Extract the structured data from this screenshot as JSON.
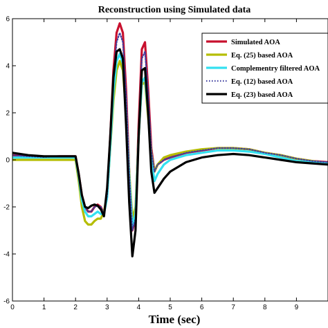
{
  "chart_data": {
    "type": "line",
    "title": "Reconstruction using Simulated data",
    "xlabel": "Time (sec)",
    "ylabel": "",
    "xlim": [
      0,
      10
    ],
    "ylim": [
      -6,
      6
    ],
    "xticks": [
      0,
      1,
      2,
      3,
      4,
      5,
      6,
      7,
      8,
      9
    ],
    "yticks": [
      -6,
      -4,
      -2,
      0,
      2,
      4,
      6
    ],
    "grid": false,
    "legend_position": "top-right",
    "series": [
      {
        "name": "Simulated AOA",
        "color": "#c8102e",
        "style": "solid",
        "x": [
          0,
          0.5,
          1,
          1.5,
          2.0,
          2.1,
          2.2,
          2.3,
          2.4,
          2.5,
          2.6,
          2.7,
          2.8,
          2.9,
          3.0,
          3.1,
          3.2,
          3.3,
          3.4,
          3.5,
          3.6,
          3.7,
          3.8,
          3.9,
          4.0,
          4.1,
          4.2,
          4.3,
          4.4,
          4.5,
          4.6,
          4.8,
          5.0,
          5.5,
          6.0,
          6.5,
          7.0,
          7.5,
          8.0,
          8.5,
          9.0,
          9.5,
          10.0
        ],
        "y": [
          0.2,
          0.15,
          0.12,
          0.15,
          0.15,
          -0.6,
          -1.5,
          -2.0,
          -2.2,
          -2.2,
          -2.0,
          -1.9,
          -2.0,
          -2.3,
          -1.5,
          1.0,
          3.8,
          5.4,
          5.8,
          5.4,
          3.0,
          -0.5,
          -3.0,
          -2.5,
          1.5,
          4.7,
          5.0,
          3.0,
          0.5,
          -0.5,
          -0.2,
          0.0,
          0.1,
          0.3,
          0.4,
          0.5,
          0.5,
          0.45,
          0.3,
          0.2,
          0.05,
          -0.05,
          -0.1
        ]
      },
      {
        "name": "Eq. (25) based AOA",
        "color": "#b5bd00",
        "style": "solid",
        "x": [
          0,
          0.5,
          1,
          1.5,
          2.0,
          2.1,
          2.2,
          2.3,
          2.4,
          2.5,
          2.6,
          2.7,
          2.8,
          2.9,
          3.0,
          3.1,
          3.2,
          3.3,
          3.4,
          3.5,
          3.6,
          3.7,
          3.8,
          3.9,
          4.0,
          4.1,
          4.2,
          4.3,
          4.4,
          4.5,
          4.6,
          4.8,
          5.0,
          5.5,
          6.0,
          6.5,
          7.0,
          7.5,
          8.0,
          8.5,
          9.0,
          9.5,
          10.0
        ],
        "y": [
          0.0,
          0.0,
          0.0,
          0.0,
          0.0,
          -0.9,
          -2.0,
          -2.6,
          -2.75,
          -2.75,
          -2.6,
          -2.5,
          -2.5,
          -2.2,
          -1.5,
          0.5,
          2.5,
          3.8,
          4.2,
          3.8,
          2.0,
          -0.5,
          -2.5,
          -2.0,
          1.0,
          3.2,
          3.3,
          1.8,
          0.3,
          -0.5,
          -0.2,
          0.1,
          0.2,
          0.35,
          0.45,
          0.5,
          0.5,
          0.45,
          0.3,
          0.2,
          0.05,
          -0.05,
          -0.15
        ]
      },
      {
        "name": "Complementry filtered AOA",
        "color": "#33e0f0",
        "style": "solid",
        "x": [
          0,
          0.5,
          1,
          1.5,
          2.0,
          2.1,
          2.2,
          2.3,
          2.4,
          2.5,
          2.6,
          2.7,
          2.8,
          2.9,
          3.0,
          3.1,
          3.2,
          3.3,
          3.4,
          3.5,
          3.6,
          3.7,
          3.8,
          3.9,
          4.0,
          4.1,
          4.2,
          4.3,
          4.4,
          4.5,
          4.6,
          4.8,
          5.0,
          5.5,
          6.0,
          6.5,
          7.0,
          7.5,
          8.0,
          8.5,
          9.0,
          9.5,
          10.0
        ],
        "y": [
          0.1,
          0.1,
          0.1,
          0.1,
          0.1,
          -0.7,
          -1.7,
          -2.2,
          -2.4,
          -2.4,
          -2.3,
          -2.2,
          -2.3,
          -2.3,
          -1.6,
          0.6,
          2.9,
          4.2,
          4.5,
          4.1,
          2.2,
          -0.7,
          -2.8,
          -2.3,
          1.0,
          3.3,
          3.5,
          2.0,
          0.1,
          -0.9,
          -0.6,
          -0.2,
          0.0,
          0.2,
          0.3,
          0.4,
          0.4,
          0.35,
          0.25,
          0.1,
          -0.05,
          -0.1,
          -0.15
        ]
      },
      {
        "name": "Eq. (12) based AOA",
        "color": "#4040a0",
        "style": "dotted",
        "x": [
          0,
          0.5,
          1,
          1.5,
          2.0,
          2.1,
          2.2,
          2.3,
          2.4,
          2.5,
          2.6,
          2.7,
          2.8,
          2.9,
          3.0,
          3.1,
          3.2,
          3.3,
          3.4,
          3.5,
          3.6,
          3.7,
          3.8,
          3.9,
          4.0,
          4.1,
          4.2,
          4.3,
          4.4,
          4.5,
          4.6,
          4.8,
          5.0,
          5.5,
          6.0,
          6.5,
          7.0,
          7.5,
          8.0,
          8.5,
          9.0,
          9.5,
          10.0
        ],
        "y": [
          0.2,
          0.15,
          0.12,
          0.15,
          0.15,
          -0.6,
          -1.5,
          -2.0,
          -2.2,
          -2.2,
          -2.0,
          -1.95,
          -2.0,
          -2.3,
          -1.5,
          0.8,
          3.5,
          5.0,
          5.4,
          5.0,
          2.8,
          -0.6,
          -3.0,
          -2.5,
          1.3,
          4.3,
          4.6,
          2.8,
          0.4,
          -0.5,
          -0.2,
          0.0,
          0.1,
          0.3,
          0.4,
          0.5,
          0.5,
          0.45,
          0.3,
          0.2,
          0.05,
          -0.05,
          -0.1
        ]
      },
      {
        "name": "Eq. (23) based AOA",
        "color": "#000000",
        "style": "solid",
        "x": [
          0,
          0.5,
          1,
          1.5,
          2.0,
          2.1,
          2.2,
          2.3,
          2.4,
          2.5,
          2.6,
          2.7,
          2.8,
          2.9,
          3.0,
          3.1,
          3.2,
          3.3,
          3.4,
          3.5,
          3.6,
          3.7,
          3.8,
          3.9,
          4.0,
          4.1,
          4.2,
          4.3,
          4.4,
          4.5,
          4.6,
          4.8,
          5.0,
          5.5,
          6.0,
          6.5,
          7.0,
          7.5,
          8.0,
          8.5,
          9.0,
          9.5,
          10.0
        ],
        "y": [
          0.3,
          0.2,
          0.15,
          0.15,
          0.15,
          -0.6,
          -1.5,
          -2.0,
          -2.05,
          -1.95,
          -1.9,
          -1.95,
          -2.1,
          -2.4,
          -1.2,
          1.0,
          3.5,
          4.6,
          4.7,
          4.3,
          1.5,
          -1.8,
          -4.1,
          -3.0,
          1.0,
          3.8,
          3.9,
          2.0,
          -0.5,
          -1.4,
          -1.2,
          -0.8,
          -0.5,
          -0.1,
          0.1,
          0.2,
          0.25,
          0.2,
          0.1,
          0.0,
          -0.1,
          -0.15,
          -0.2
        ]
      }
    ]
  }
}
